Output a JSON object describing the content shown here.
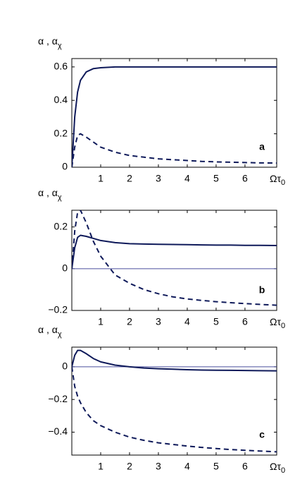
{
  "chart_data": [
    {
      "type": "line",
      "ylabel": "α , α",
      "ylabel_sub": "χ",
      "xlabel": "Ωτ",
      "xlabel_sub": "0",
      "annotation": "a",
      "x": [
        0,
        0.1,
        0.2,
        0.3,
        0.5,
        0.75,
        1,
        1.5,
        2,
        2.5,
        3,
        3.5,
        4,
        4.5,
        5,
        5.5,
        6,
        6.5,
        7.1
      ],
      "series": [
        {
          "style": "solid",
          "color": "#0f1a5a",
          "values": [
            0,
            0.3,
            0.45,
            0.52,
            0.57,
            0.59,
            0.595,
            0.6,
            0.6,
            0.6,
            0.6,
            0.6,
            0.6,
            0.6,
            0.6,
            0.6,
            0.6,
            0.6,
            0.6
          ]
        },
        {
          "style": "dashed",
          "color": "#0f1a5a",
          "values": [
            0,
            0.12,
            0.19,
            0.2,
            0.18,
            0.15,
            0.12,
            0.09,
            0.07,
            0.06,
            0.05,
            0.045,
            0.04,
            0.035,
            0.032,
            0.03,
            0.028,
            0.026,
            0.025
          ]
        }
      ],
      "xlim": [
        0,
        7.1
      ],
      "xticks": [
        1,
        2,
        3,
        4,
        5,
        6
      ],
      "ylim": [
        0,
        0.65
      ],
      "yticks": [
        0,
        0.2,
        0.4,
        0.6
      ]
    },
    {
      "type": "line",
      "ylabel": "α , α",
      "ylabel_sub": "χ",
      "xlabel": "Ωτ",
      "xlabel_sub": "0",
      "annotation": "b",
      "hline": 0,
      "x": [
        0,
        0.1,
        0.2,
        0.3,
        0.5,
        0.75,
        1,
        1.5,
        2,
        2.5,
        3,
        3.5,
        4,
        4.5,
        5,
        5.5,
        6,
        6.5,
        7.1
      ],
      "series": [
        {
          "style": "solid",
          "color": "#0f1a5a",
          "values": [
            0,
            0.1,
            0.15,
            0.16,
            0.155,
            0.145,
            0.135,
            0.125,
            0.12,
            0.118,
            0.117,
            0.116,
            0.115,
            0.114,
            0.113,
            0.113,
            0.112,
            0.112,
            0.111
          ]
        },
        {
          "style": "dashed",
          "color": "#0f1a5a",
          "values": [
            0,
            0.18,
            0.27,
            0.28,
            0.22,
            0.13,
            0.06,
            -0.03,
            -0.07,
            -0.1,
            -0.12,
            -0.135,
            -0.145,
            -0.152,
            -0.158,
            -0.163,
            -0.167,
            -0.171,
            -0.175
          ]
        }
      ],
      "xlim": [
        0,
        7.1
      ],
      "xticks": [
        1,
        2,
        3,
        4,
        5,
        6
      ],
      "ylim": [
        -0.2,
        0.28
      ],
      "yticks": [
        {
          "value": -0.2,
          "label": "−0.2"
        },
        0,
        0.2
      ]
    },
    {
      "type": "line",
      "ylabel": "α , α",
      "ylabel_sub": "χ",
      "xlabel": "Ωτ",
      "xlabel_sub": "0",
      "annotation": "c",
      "hline": 0,
      "x": [
        0,
        0.1,
        0.2,
        0.3,
        0.5,
        0.75,
        1,
        1.5,
        2,
        2.5,
        3,
        3.5,
        4,
        4.5,
        5,
        5.5,
        6,
        6.5,
        7.1
      ],
      "series": [
        {
          "style": "solid",
          "color": "#0f1a5a",
          "values": [
            0,
            0.07,
            0.1,
            0.1,
            0.08,
            0.05,
            0.03,
            0.01,
            0.0,
            -0.008,
            -0.012,
            -0.015,
            -0.018,
            -0.02,
            -0.021,
            -0.022,
            -0.023,
            -0.024,
            -0.025
          ]
        },
        {
          "style": "dashed",
          "color": "#0f1a5a",
          "values": [
            0,
            -0.12,
            -0.18,
            -0.22,
            -0.28,
            -0.33,
            -0.36,
            -0.4,
            -0.43,
            -0.45,
            -0.465,
            -0.475,
            -0.485,
            -0.493,
            -0.5,
            -0.506,
            -0.511,
            -0.515,
            -0.52
          ]
        }
      ],
      "xlim": [
        0,
        7.1
      ],
      "xticks": [
        1,
        2,
        3,
        4,
        5,
        6
      ],
      "ylim": [
        -0.54,
        0.12
      ],
      "yticks": [
        {
          "value": -0.4,
          "label": "−0.4"
        },
        {
          "value": -0.2,
          "label": "−0.2"
        },
        0
      ]
    }
  ]
}
